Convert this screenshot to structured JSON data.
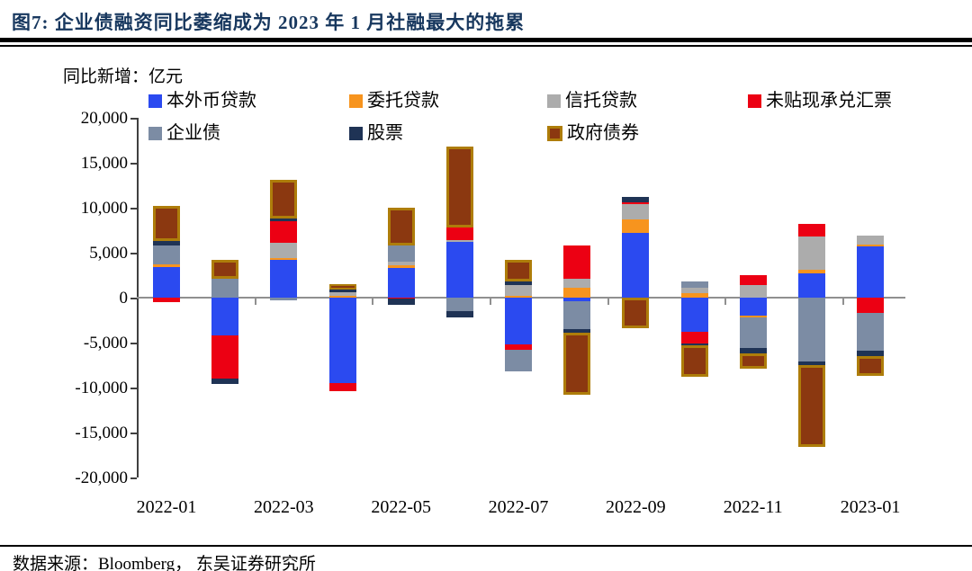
{
  "title": "图7:  企业债融资同比萎缩成为 2023 年 1 月社融最大的拖累",
  "unit_label": "同比新增：亿元",
  "source": "数据来源：Bloomberg， 东吴证券研究所",
  "colors": {
    "title_navy": "#17375E",
    "axis": "#404040",
    "zero_line": "#909090",
    "gov_bond_border": "#AE7D0A"
  },
  "chart_data": {
    "type": "bar",
    "stacked": true,
    "title": "企业债融资同比萎缩成为 2023 年 1 月社融最大的拖累",
    "ylabel": "同比新增：亿元",
    "ylim": [
      -20000,
      20000
    ],
    "y_tick_step": 5000,
    "grid": false,
    "legend_position": "top",
    "categories": [
      "2022-01",
      "2022-02",
      "2022-03",
      "2022-04",
      "2022-05",
      "2022-06",
      "2022-07",
      "2022-08",
      "2022-09",
      "2022-10",
      "2022-11",
      "2022-12",
      "2023-01"
    ],
    "x_tick_labels": [
      "2022-01",
      "2022-03",
      "2022-05",
      "2022-07",
      "2022-09",
      "2022-11",
      "2023-01"
    ],
    "y_tick_labels": [
      "20,000",
      "15,000",
      "10,000",
      "5,000",
      "0",
      "-5,000",
      "-10,000",
      "-15,000",
      "-20,000"
    ],
    "series": [
      {
        "name": "本外币贷款",
        "color": "#2B4AF0",
        "values": [
          3430,
          -4200,
          4200,
          -9450,
          3350,
          6170,
          -5170,
          -350,
          7170,
          -3830,
          -2000,
          2700,
          5670
        ]
      },
      {
        "name": "委托贷款",
        "color": "#F7941E",
        "values": [
          300,
          0,
          250,
          170,
          250,
          0,
          230,
          1140,
          1500,
          470,
          -170,
          400,
          260
        ]
      },
      {
        "name": "信托贷款",
        "color": "#ACACAC",
        "values": [
          0,
          0,
          1650,
          430,
          420,
          260,
          1200,
          1000,
          1730,
          600,
          1430,
          3730,
          1000
        ]
      },
      {
        "name": "未贴现承兑汇票",
        "color": "#EC0013",
        "values": [
          -500,
          -4800,
          2450,
          -950,
          -130,
          1400,
          -600,
          3660,
          170,
          -1270,
          1070,
          1400,
          -1700
        ]
      },
      {
        "name": "企业债",
        "color": "#7C8CA4",
        "values": [
          2100,
          2150,
          -300,
          0,
          1750,
          -1500,
          -2400,
          -3180,
          0,
          730,
          -3400,
          -7070,
          -4200
        ]
      },
      {
        "name": "股票",
        "color": "#1F3355",
        "values": [
          450,
          -600,
          250,
          330,
          -700,
          -670,
          400,
          -330,
          660,
          -230,
          -600,
          -430,
          -600
        ]
      },
      {
        "name": "政府债券",
        "color": "#8B3810",
        "border": "#AE7D0A",
        "values": [
          3900,
          2100,
          4300,
          570,
          4250,
          8940,
          2340,
          -6970,
          -3430,
          -3500,
          -1730,
          -9070,
          -2230
        ]
      }
    ]
  }
}
